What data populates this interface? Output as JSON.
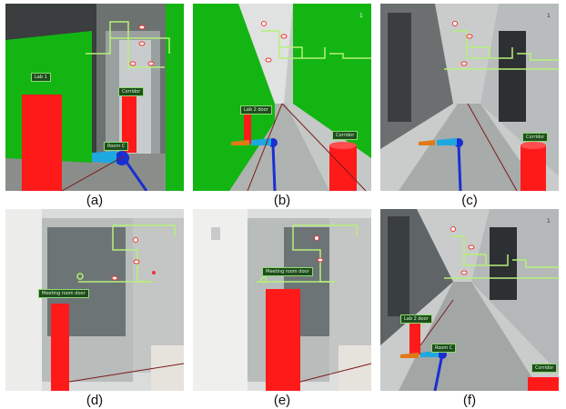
{
  "captions": [
    "(a)",
    "(b)",
    "(c)",
    "(d)",
    "(e)",
    "(f)"
  ],
  "panels": [
    {
      "labels": [
        "Lab 1",
        "Corridor",
        "Room C"
      ]
    },
    {
      "labels": [
        "Lab 2 door",
        "Corridor"
      ],
      "badge": "1"
    },
    {
      "labels": [
        "Corridor"
      ],
      "badge": "1"
    },
    {
      "labels": [
        "Meeting room door"
      ]
    },
    {
      "labels": [
        "Meeting room door"
      ]
    },
    {
      "labels": [
        "Lab 2 door",
        "Room C",
        "Corridor"
      ],
      "badge": "1"
    }
  ],
  "colors": {
    "marker": "#ff1a1a",
    "wall_overlay": "#13b513",
    "map_lines": "#b6f07a",
    "arrow_cyan": "#1ea8e0",
    "arrow_orange": "#e07a18",
    "pole_blue": "#1a2fd0"
  }
}
